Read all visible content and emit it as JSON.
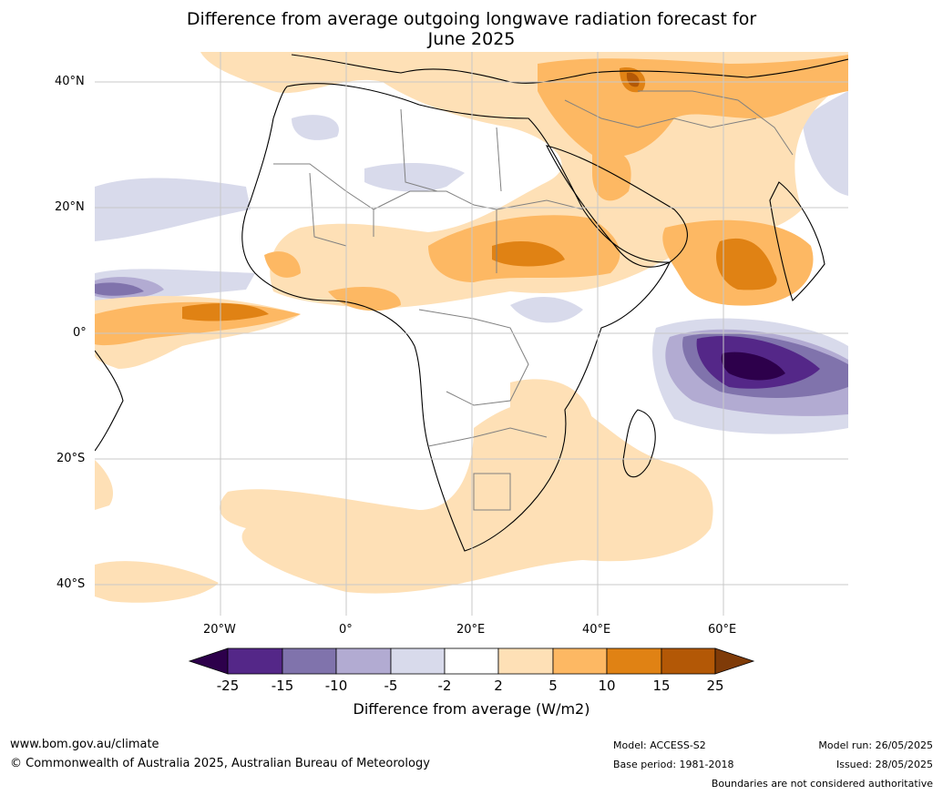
{
  "title_line1": "Difference from average outgoing longwave radiation forecast for",
  "title_line2": "June 2025",
  "lat_labels": [
    "40°N",
    "20°N",
    "0°",
    "20°S",
    "40°S"
  ],
  "lon_labels": [
    "20°W",
    "0°",
    "20°E",
    "40°E",
    "60°E"
  ],
  "colorbar": {
    "label": "Difference from average (W/m2)",
    "ticks": [
      "-25",
      "-15",
      "-10",
      "-5",
      "-2",
      "2",
      "5",
      "10",
      "15",
      "25"
    ],
    "colors": [
      "#2d004b",
      "#542788",
      "#8073ac",
      "#b2abd2",
      "#d8daeb",
      "#ffffff",
      "#fee0b6",
      "#fdb863",
      "#e08214",
      "#b35806",
      "#7f3b08"
    ]
  },
  "footer": {
    "url": "www.bom.gov.au/climate",
    "copyright": "© Commonwealth of Australia 2025, Australian Bureau of Meteorology",
    "model": "Model: ACCESS-S2",
    "base_period": "Base period: 1981-2018",
    "model_run": "Model run: 26/05/2025",
    "issued": "Issued: 28/05/2025",
    "disclaimer": "Boundaries are not considered authoritative"
  }
}
